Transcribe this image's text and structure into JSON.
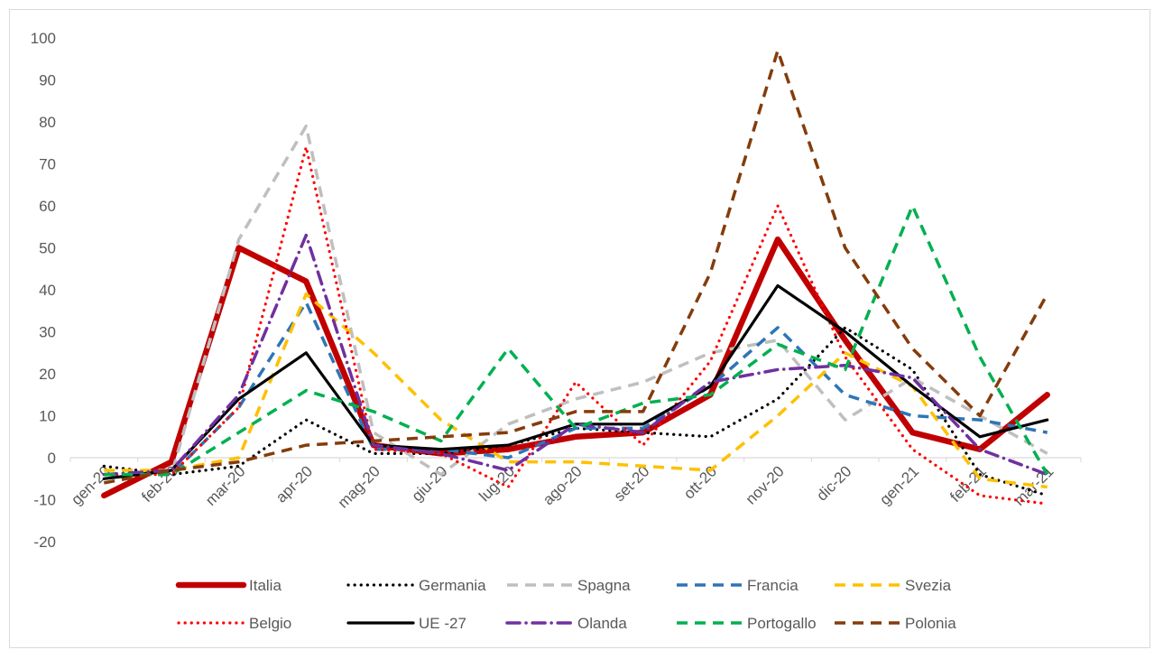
{
  "chart_data": {
    "type": "line",
    "title": "",
    "xlabel": "",
    "ylabel": "",
    "ylim": [
      -20,
      100
    ],
    "yticks": [
      -20,
      -10,
      0,
      10,
      20,
      30,
      40,
      50,
      60,
      70,
      80,
      90,
      100
    ],
    "grid": false,
    "legend_position": "bottom",
    "categories": [
      "gen-20",
      "feb-20",
      "mar-20",
      "apr-20",
      "mag-20",
      "giu-20",
      "lug-20",
      "ago-20",
      "set-20",
      "ott-20",
      "nov-20",
      "dic-20",
      "gen-21",
      "feb-21",
      "mar-21"
    ],
    "series": [
      {
        "name": "Italia",
        "color": "#c00000",
        "style": "solid-thick",
        "values": [
          -9,
          -1,
          50,
          42,
          3,
          1,
          2,
          5,
          6,
          15,
          52,
          28,
          6,
          2,
          15
        ]
      },
      {
        "name": "Germania",
        "color": "#000000",
        "style": "dotted",
        "values": [
          -2,
          -4,
          -2,
          9,
          1,
          1,
          3,
          7,
          6,
          5,
          14,
          31,
          21,
          -4,
          -9
        ]
      },
      {
        "name": "Spagna",
        "color": "#bfbfbf",
        "style": "dashed",
        "values": [
          -4,
          -4,
          52,
          79,
          6,
          -4,
          8,
          14,
          18,
          25,
          28,
          9,
          19,
          10,
          1
        ]
      },
      {
        "name": "Francia",
        "color": "#2e75b6",
        "style": "dashed",
        "values": [
          -4,
          -4,
          12,
          37,
          2,
          2,
          0,
          7,
          7,
          17,
          31,
          15,
          10,
          9,
          6
        ]
      },
      {
        "name": "Svezia",
        "color": "#ffc000",
        "style": "dashed",
        "values": [
          -3,
          -3,
          0,
          39,
          25,
          9,
          -1,
          -1,
          -2,
          -3,
          10,
          25,
          17,
          -5,
          -7
        ]
      },
      {
        "name": "Belgio",
        "color": "#ff0000",
        "style": "dotted",
        "values": [
          -4,
          -4,
          12,
          74,
          2,
          1,
          -7,
          18,
          3,
          23,
          60,
          24,
          2,
          -9,
          -11
        ]
      },
      {
        "name": "UE -27",
        "color": "#000000",
        "style": "solid",
        "values": [
          -5,
          -3,
          14,
          25,
          3,
          2,
          3,
          8,
          8,
          17,
          41,
          30,
          17,
          5,
          9
        ]
      },
      {
        "name": "Olanda",
        "color": "#7030a0",
        "style": "dashdot",
        "values": [
          -4,
          -3,
          15,
          53,
          3,
          1,
          -3,
          8,
          6,
          18,
          21,
          22,
          19,
          2,
          -4
        ]
      },
      {
        "name": "Portogallo",
        "color": "#00b050",
        "style": "dashed",
        "values": [
          -4,
          -4,
          6,
          16,
          11,
          4,
          26,
          7,
          13,
          15,
          27,
          21,
          60,
          24,
          -4
        ]
      },
      {
        "name": "Polonia",
        "color": "#843c0c",
        "style": "dashed",
        "values": [
          -6,
          -3,
          -1,
          3,
          4,
          5,
          6,
          11,
          11,
          44,
          97,
          50,
          26,
          10,
          39
        ]
      }
    ]
  }
}
